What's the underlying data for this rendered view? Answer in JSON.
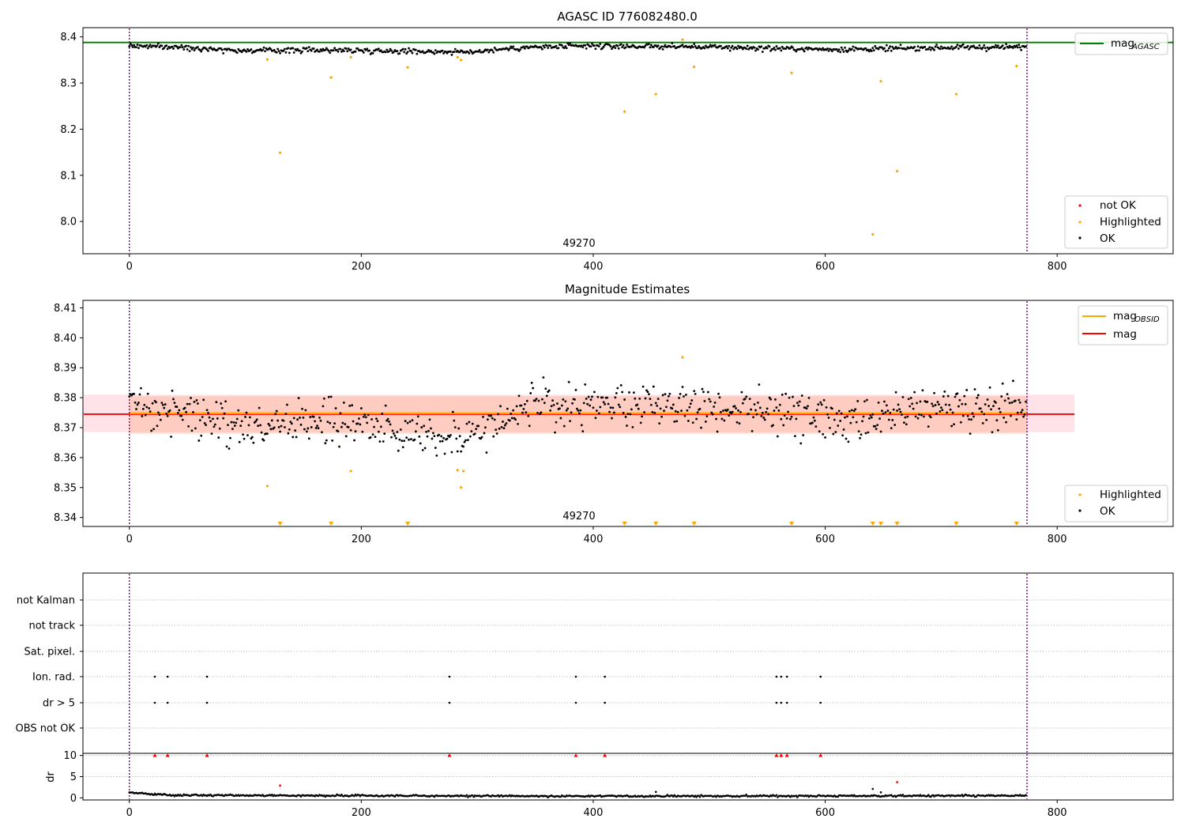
{
  "colors": {
    "ok": "#000000",
    "highlighted": "#ffa500",
    "not_ok": "#ff0000",
    "agasc_line": "#008000",
    "mag_line": "#ff0000",
    "obsid_line": "#ffa500",
    "band_outer": "#ffc0cb",
    "band_inner": "#ffa07a",
    "vline": "#800080",
    "grid": "#b0b0b0"
  },
  "chart_data": [
    {
      "type": "scatter",
      "title": "AGASC ID 776082480.0",
      "xlim": [
        -40,
        900
      ],
      "ylim": [
        7.93,
        8.42
      ],
      "xticks": [
        0,
        200,
        400,
        600,
        800
      ],
      "yticks": [
        8.0,
        8.1,
        8.2,
        8.3,
        8.4
      ],
      "mag_agasc": 8.388,
      "obs_bounds": [
        0,
        774
      ],
      "annotation": "49270",
      "annotation_x": 387,
      "legend_top": [
        {
          "label": "mag",
          "sub": "AGASC",
          "color": "#008000"
        }
      ],
      "legend_bottom": [
        {
          "label": "not OK",
          "color": "#ff0000"
        },
        {
          "label": "Highlighted",
          "color": "#ffa500"
        },
        {
          "label": "OK",
          "color": "#000000"
        }
      ],
      "ok_series": {
        "n": 774,
        "segments": [
          [
            0,
            8.381
          ],
          [
            60,
            8.376
          ],
          [
            100,
            8.37
          ],
          [
            160,
            8.372
          ],
          [
            230,
            8.37
          ],
          [
            290,
            8.367
          ],
          [
            340,
            8.377
          ],
          [
            400,
            8.38
          ],
          [
            480,
            8.379
          ],
          [
            540,
            8.376
          ],
          [
            600,
            8.373
          ],
          [
            650,
            8.374
          ],
          [
            700,
            8.377
          ],
          [
            774,
            8.378
          ]
        ]
      },
      "highlighted": [
        [
          119,
          8.351
        ],
        [
          130,
          8.149
        ],
        [
          174,
          8.312
        ],
        [
          191,
          8.356
        ],
        [
          240,
          8.334
        ],
        [
          283,
          8.356
        ],
        [
          286,
          8.35
        ],
        [
          427,
          8.238
        ],
        [
          454,
          8.276
        ],
        [
          477,
          8.394
        ],
        [
          487,
          8.335
        ],
        [
          571,
          8.322
        ],
        [
          641,
          7.972
        ],
        [
          648,
          8.304
        ],
        [
          662,
          8.109
        ],
        [
          713,
          8.276
        ],
        [
          765,
          8.337
        ]
      ]
    },
    {
      "type": "scatter",
      "title": "Magnitude Estimates",
      "xlim": [
        -40,
        900
      ],
      "ylim": [
        8.337,
        8.4125
      ],
      "xticks": [
        0,
        200,
        400,
        600,
        800
      ],
      "yticks": [
        8.34,
        8.35,
        8.36,
        8.37,
        8.38,
        8.39,
        8.4,
        8.41
      ],
      "mag": 8.3745,
      "mag_obsid": 8.3748,
      "band_outer": [
        8.3685,
        8.381
      ],
      "band_inner": [
        8.368,
        8.3805
      ],
      "band_xrange": [
        -40,
        815
      ],
      "obs_bounds": [
        0,
        774
      ],
      "annotation": "49270",
      "annotation_x": 387,
      "legend_top": [
        {
          "label": "mag",
          "sub": "OBSID",
          "color": "#ffa500"
        },
        {
          "label": "mag",
          "sub": "",
          "color": "#ff0000"
        }
      ],
      "legend_bottom": [
        {
          "label": "Highlighted",
          "color": "#ffa500"
        },
        {
          "label": "OK",
          "color": "#000000"
        }
      ],
      "ok_series": {
        "n": 774,
        "segments": [
          [
            0,
            8.378
          ],
          [
            40,
            8.376
          ],
          [
            100,
            8.37
          ],
          [
            160,
            8.372
          ],
          [
            230,
            8.37
          ],
          [
            290,
            8.367
          ],
          [
            340,
            8.377
          ],
          [
            400,
            8.377
          ],
          [
            480,
            8.378
          ],
          [
            540,
            8.376
          ],
          [
            600,
            8.373
          ],
          [
            630,
            8.37
          ],
          [
            680,
            8.377
          ],
          [
            774,
            8.378
          ]
        ]
      },
      "highlighted_points": [
        [
          119,
          8.3505
        ],
        [
          191,
          8.3555
        ],
        [
          283,
          8.3558
        ],
        [
          286,
          8.35
        ],
        [
          288,
          8.3555
        ],
        [
          477,
          8.3935
        ]
      ],
      "highlighted_offscale": [
        130,
        174,
        240,
        427,
        454,
        487,
        571,
        641,
        648,
        662,
        713,
        765
      ]
    },
    {
      "type": "scatter",
      "title": "",
      "xlim": [
        -40,
        900
      ],
      "xticks": [
        0,
        200,
        400,
        600,
        800
      ],
      "flag_categories": [
        "not Kalman",
        "not track",
        "Sat. pixel.",
        "Ion. rad.",
        "dr > 5",
        "OBS not OK"
      ],
      "flag_points": {
        "Ion. rad.": [
          22,
          33,
          67,
          276,
          385,
          410,
          558,
          562,
          567,
          596
        ],
        "dr > 5": [
          22,
          33,
          67,
          276,
          385,
          410,
          558,
          562,
          567,
          596
        ]
      },
      "obs_bounds": [
        0,
        774
      ]
    },
    {
      "type": "scatter",
      "ylabel": "dr",
      "xlim": [
        -40,
        900
      ],
      "ylim": [
        -0.5,
        10.5
      ],
      "xticks": [
        0,
        200,
        400,
        600,
        800
      ],
      "yticks": [
        0,
        5,
        10
      ],
      "baseline": {
        "n": 774,
        "segments": [
          [
            0,
            1.2
          ],
          [
            40,
            0.6
          ],
          [
            200,
            0.5
          ],
          [
            400,
            0.4
          ],
          [
            774,
            0.5
          ]
        ]
      },
      "offscale_markers": [
        22,
        33,
        67,
        276,
        385,
        410,
        558,
        562,
        567,
        596
      ],
      "red_points": [
        [
          130,
          2.9
        ],
        [
          662,
          3.7
        ]
      ],
      "black_extra": [
        [
          454,
          1.4
        ],
        [
          641,
          2.1
        ],
        [
          648,
          1.3
        ]
      ],
      "obs_bounds": [
        0,
        774
      ]
    }
  ]
}
